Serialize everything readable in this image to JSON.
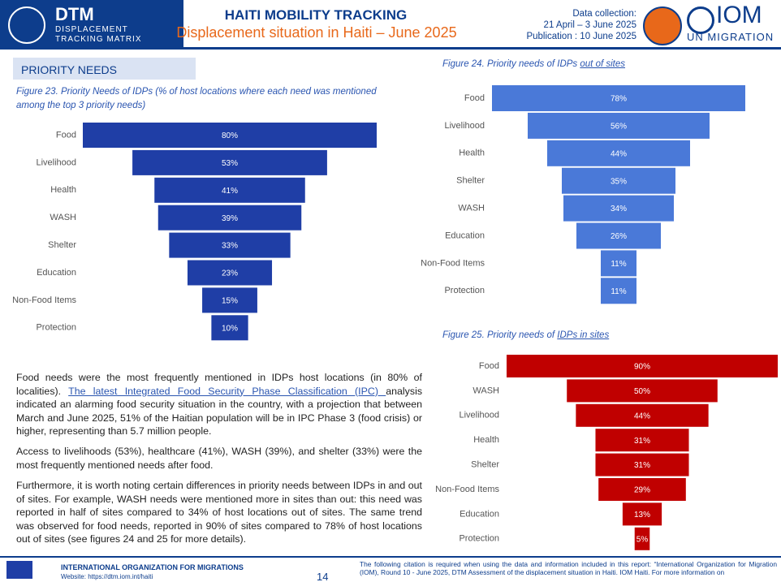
{
  "header": {
    "logo_title": "DTM",
    "logo_sub1": "DISPLACEMENT",
    "logo_sub2": "TRACKING MATRIX",
    "title": "HAITI MOBILITY TRACKING",
    "subtitle": "Displacement situation in Haiti – June 2025",
    "collection_label": "Data collection:",
    "collection_dates": "21 April – 3 June 2025",
    "publication": "Publication : 10 June 2025",
    "iom": "IOM",
    "iom_sub": "UN MIGRATION"
  },
  "section_title": "PRIORITY NEEDS",
  "paragraphs": [
    {
      "before": "Food needs were the most frequently mentioned in IDPs host locations (in 80% of localities). ",
      "link": "The latest Integrated Food Security Phase Classification (IPC) ",
      "after": "analysis indicated an alarming food security situation in the country, with a projection that between March and June 2025, 51% of the Haitian population will be in IPC Phase 3 (food crisis) or higher, representing than 5.7 million people."
    },
    {
      "text": "Access to livelihoods (53%), healthcare (41%), WASH (39%), and shelter (33%) were the most frequently mentioned needs after food."
    },
    {
      "text": "Furthermore, it is worth noting certain differences in priority needs between IDPs in and out of sites. For example, WASH needs were mentioned more in sites than out: this need was reported in half of sites compared to 34% of host locations out of sites. The same trend was observed for food needs, reported in 90% of sites compared to 78% of host locations out of sites (see figures 24 and 25 for more details)."
    }
  ],
  "footer": {
    "org": "INTERNATIONAL ORGANIZATION FOR MIGRATIONS",
    "website": "Website: https://dtm.iom.int/haiti",
    "page": "14",
    "citation": "The following citation is required when using the data and information included in this report: “International Organization for Migration (IOM), Round 10 - June 2025, DTM Assessment of the displacement situation in Haiti. IOM Haiti. For more information on"
  },
  "chart_data": [
    {
      "type": "bar",
      "title": "Figure 23. Priority Needs of IDPs (% of host locations where each need was mentioned among the top 3 priority needs)",
      "color": "#1f3ea6",
      "categories": [
        "Food",
        "Livelihood",
        "Health",
        "WASH",
        "Shelter",
        "Education",
        "Non-Food Items",
        "Protection"
      ],
      "values": [
        80,
        53,
        41,
        39,
        33,
        23,
        15,
        10
      ],
      "value_labels": [
        "80%",
        "53%",
        "41%",
        "39%",
        "33%",
        "23%",
        "15%",
        "10%"
      ]
    },
    {
      "type": "bar",
      "title": "Figure 24. Priority needs of IDPs",
      "title_link": "out of sites",
      "color": "#4a79d8",
      "categories": [
        "Food",
        "Livelihood",
        "Health",
        "Shelter",
        "WASH",
        "Education",
        "Non-Food Items",
        "Protection"
      ],
      "values": [
        78,
        56,
        44,
        35,
        34,
        26,
        11,
        11
      ],
      "value_labels": [
        "78%",
        "56%",
        "44%",
        "35%",
        "34%",
        "26%",
        "11%",
        "11%"
      ]
    },
    {
      "type": "bar",
      "title": "Figure 25. Priority needs of",
      "title_link": "IDPs in sites",
      "color": "#c00000",
      "categories": [
        "Food",
        "WASH",
        "Livelihood",
        "Health",
        "Shelter",
        "Non-Food Items",
        "Education",
        "Protection"
      ],
      "values": [
        90,
        50,
        44,
        31,
        31,
        29,
        13,
        5
      ],
      "value_labels": [
        "90%",
        "50%",
        "44%",
        "31%",
        "31%",
        "29%",
        "13%",
        "5%"
      ]
    }
  ]
}
